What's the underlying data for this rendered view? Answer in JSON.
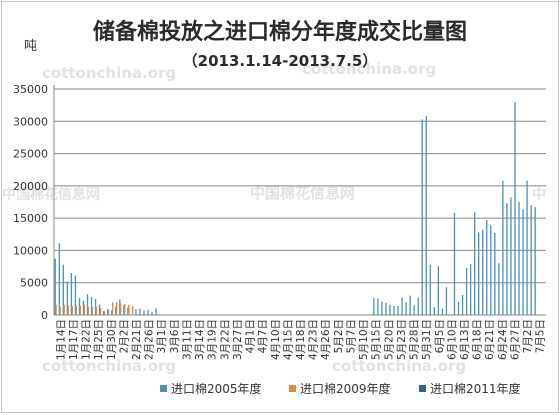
{
  "chart_data": {
    "type": "bar",
    "title": "储备棉投放之进口棉分年度成交比量图",
    "subtitle": "（2013.1.14-2013.7.5）",
    "ylabel": "吨",
    "ylim": [
      0,
      35000
    ],
    "yticks": [
      0,
      5000,
      10000,
      15000,
      20000,
      25000,
      30000,
      35000
    ],
    "grid": true,
    "legend_position": "bottom",
    "x_tick_labels": [
      "1月14日",
      "1月17日",
      "1月22日",
      "1月25日",
      "1月30日",
      "2月2日",
      "2月21日",
      "2月26日",
      "3月1日",
      "3月6日",
      "3月11日",
      "3月14日",
      "3月19日",
      "3月22日",
      "3月27日",
      "4月1日",
      "4月7日",
      "4月10日",
      "4月15日",
      "4月18日",
      "4月23日",
      "4月26日",
      "5月2日",
      "5月7日",
      "5月10日",
      "5月15日",
      "5月20日",
      "5月23日",
      "5月28日",
      "5月31日",
      "6月5日",
      "6月10日",
      "6月13日",
      "6月18日",
      "6月21日",
      "6月24日",
      "6月27日",
      "7月2日",
      "7月5日"
    ],
    "trading_days": 122,
    "series": [
      {
        "name": "进口棉2005年度",
        "color": "#4e8fb2",
        "values": [
          8700,
          11100,
          7800,
          5200,
          6500,
          6100,
          2600,
          2200,
          3200,
          2800,
          2500,
          1600,
          600,
          900,
          700,
          1300,
          2400,
          1500,
          1100,
          0,
          900,
          1000,
          700,
          800,
          500,
          1000,
          0,
          0,
          0,
          0,
          0,
          0,
          0,
          0,
          0,
          0,
          0,
          0,
          0,
          0,
          0,
          0,
          0,
          0,
          0,
          0,
          0,
          0,
          0,
          0,
          0,
          0,
          0,
          0,
          0,
          0,
          0,
          0,
          0,
          0,
          0,
          0,
          0,
          0,
          0,
          0,
          0,
          0,
          0,
          0,
          0,
          0,
          0,
          0,
          0,
          0,
          0,
          0,
          0,
          2600,
          2600,
          2100,
          1900,
          1600,
          1400,
          1400,
          2700,
          2000,
          3000,
          1500,
          2700,
          30300,
          30800,
          7800,
          1200,
          7600,
          1000,
          4300,
          0,
          15800,
          2000,
          3100,
          7300,
          7900,
          15900,
          12800,
          13200,
          14700,
          13900,
          12700,
          8000,
          20800,
          17300,
          18200,
          33000,
          17500,
          16400,
          20800,
          17000,
          16700
        ]
      },
      {
        "name": "进口棉2009年度",
        "color": "#d98a3e",
        "values": [
          1600,
          1300,
          1600,
          1500,
          1400,
          1500,
          1400,
          1600,
          1300,
          1200,
          1300,
          1100,
          600,
          800,
          2000,
          2000,
          1800,
          1700,
          1600,
          1400,
          0,
          0,
          0,
          0,
          0,
          0,
          0,
          0,
          0,
          0,
          0,
          0,
          0,
          0,
          0,
          0,
          0,
          0,
          0,
          0,
          0,
          0,
          0,
          0,
          0,
          0,
          0,
          0,
          0,
          0,
          0,
          0,
          0,
          0,
          0,
          0,
          0,
          0,
          0,
          0,
          0,
          0,
          0,
          0,
          0,
          0,
          0,
          0,
          0,
          0,
          0,
          0,
          0,
          0,
          0,
          0,
          0,
          0,
          0,
          0,
          0,
          0,
          0,
          0,
          0,
          0,
          0,
          0,
          0,
          0,
          0,
          0,
          0,
          0,
          0,
          0,
          0,
          0,
          0,
          0,
          0,
          0,
          0,
          0,
          0,
          0,
          0,
          0,
          0,
          0,
          0,
          0,
          0,
          0,
          0,
          0,
          0,
          0,
          0,
          0,
          0,
          0
        ]
      },
      {
        "name": "进口棉2011年度",
        "color": "#3b5f8e",
        "values": [
          0,
          0,
          0,
          0,
          0,
          0,
          0,
          0,
          0,
          0,
          0,
          0,
          0,
          0,
          0,
          0,
          0,
          0,
          0,
          0,
          0,
          0,
          0,
          0,
          0,
          0,
          0,
          0,
          0,
          0,
          0,
          0,
          0,
          0,
          0,
          0,
          0,
          0,
          0,
          0,
          0,
          0,
          0,
          0,
          0,
          0,
          0,
          0,
          0,
          0,
          0,
          0,
          0,
          0,
          0,
          0,
          0,
          0,
          0,
          0,
          0,
          0,
          0,
          0,
          0,
          0,
          0,
          0,
          0,
          0,
          0,
          0,
          0,
          0,
          0,
          0,
          0,
          0,
          0,
          0,
          0,
          0,
          0,
          0,
          0,
          0,
          0,
          0,
          0,
          0,
          0,
          0,
          0,
          0,
          0,
          0,
          0,
          0,
          0,
          0,
          0,
          0,
          0,
          0,
          0,
          0,
          0,
          0,
          0,
          0,
          0,
          0,
          0,
          0,
          0,
          0,
          0,
          0,
          0,
          0,
          0,
          0
        ]
      }
    ]
  },
  "watermarks": {
    "wm1": "cottonchina.org",
    "wm2": "cottonchina.org",
    "wm3": "中国棉花信息网",
    "wm4": "中国棉花信息网",
    "wm5": "中",
    "wm6": "cottonchina.org",
    "wm7": "cottonchina.org"
  }
}
